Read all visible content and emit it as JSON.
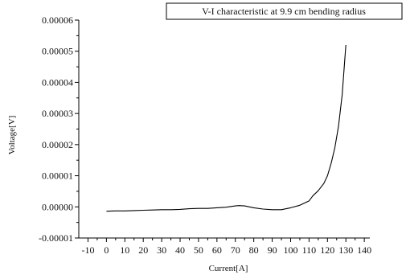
{
  "chart_data": {
    "type": "line",
    "xlabel": "Current[A]",
    "ylabel": "Voltage[V]",
    "xlim": [
      -15,
      143
    ],
    "ylim": [
      -1e-05,
      6e-05
    ],
    "x_ticks": [
      "-10",
      "0",
      "10",
      "20",
      "30",
      "40",
      "50",
      "60",
      "70",
      "80",
      "90",
      "100",
      "110",
      "120",
      "130",
      "140"
    ],
    "y_ticks": [
      "-0.00001",
      "0.00000",
      "0.00001",
      "0.00002",
      "0.00003",
      "0.00004",
      "0.00005",
      "0.00006"
    ],
    "grid": false,
    "legend_position": "top-right",
    "series": [
      {
        "name": "V-I characteristic at 9.9 cm bending radius",
        "color": "#000000",
        "x": [
          0,
          5,
          10,
          15,
          20,
          25,
          30,
          35,
          40,
          45,
          50,
          55,
          60,
          65,
          70,
          72,
          75,
          80,
          85,
          90,
          95,
          100,
          105,
          110,
          112,
          115,
          118,
          120,
          122,
          124,
          126,
          128,
          130
        ],
        "y": [
          -1.4e-06,
          -1.3e-06,
          -1.3e-06,
          -1.2e-06,
          -1.1e-06,
          -1e-06,
          -9e-07,
          -9e-07,
          -8e-07,
          -6e-07,
          -5e-07,
          -5e-07,
          -3e-07,
          -1e-07,
          3e-07,
          4e-07,
          3e-07,
          -3e-07,
          -7e-07,
          -9e-07,
          -9e-07,
          -3e-07,
          5e-07,
          1.9e-06,
          3.5e-06,
          5.2e-06,
          7.5e-06,
          1e-05,
          1.4e-05,
          1.9e-05,
          2.6e-05,
          3.6e-05,
          5.2e-05
        ]
      }
    ]
  }
}
